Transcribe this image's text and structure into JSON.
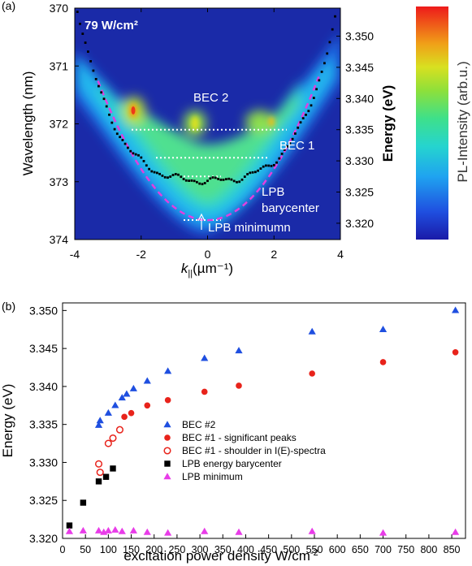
{
  "panel_labels": {
    "a": "(a)",
    "b": "(b)"
  },
  "chart_data": [
    {
      "type": "heatmap",
      "title": "79 W/cm²",
      "xlabel": "k",
      "xlabel_sub": "||",
      "xlabel_unit": "(µm⁻¹)",
      "ylabel_left": "Wavelength (nm)",
      "ylabel_right": "Energy (eV)",
      "colorbar_label": "PL-Intensity (arb.u.)",
      "xlim": [
        -4,
        4
      ],
      "x_ticks": [
        "-4",
        "-2",
        "0",
        "2",
        "4"
      ],
      "wavelength_lim": [
        370,
        374
      ],
      "wavelength_ticks": [
        "370",
        "371",
        "372",
        "373",
        "374"
      ],
      "energy_ticks": [
        "3.350",
        "3.345",
        "3.340",
        "3.335",
        "3.330",
        "3.325",
        "3.320"
      ],
      "annotations": {
        "bec2": "BEC 2",
        "bec1": "BEC 1",
        "lpb_bary_1": "LPB",
        "lpb_bary_2": "barycenter",
        "lpb_min": "LPB minimumn"
      },
      "levels_energy_eV": {
        "BEC2": 3.335,
        "BEC1": 3.3305,
        "LPB_barycenter": 3.3275,
        "LPB_minimum": 3.3205
      }
    },
    {
      "type": "scatter",
      "xlabel": "excitation power density W/cm",
      "xlabel_sup": "-2",
      "ylabel": "Energy (eV)",
      "xlim": [
        0,
        880
      ],
      "ylim": [
        3.32,
        3.351
      ],
      "x_ticks": [
        "0",
        "50",
        "100",
        "150",
        "200",
        "250",
        "300",
        "350",
        "400",
        "450",
        "500",
        "550",
        "600",
        "650",
        "700",
        "750",
        "800",
        "850"
      ],
      "y_ticks": [
        "3.320",
        "3.325",
        "3.330",
        "3.335",
        "3.340",
        "3.345",
        "3.350"
      ],
      "legend_position": "center-right",
      "series": [
        {
          "name": "BEC #2",
          "marker": "triangle",
          "color": "#1f4fe0",
          "filled": true,
          "x": [
            79,
            82,
            100,
            115,
            130,
            140,
            155,
            185,
            230,
            310,
            385,
            545,
            700,
            858
          ],
          "y": [
            3.3349,
            3.3355,
            3.3365,
            3.3375,
            3.3385,
            3.339,
            3.3397,
            3.3407,
            3.342,
            3.3437,
            3.3447,
            3.3472,
            3.3475,
            3.35
          ]
        },
        {
          "name": "BEC #1 - significant peaks",
          "marker": "circle",
          "color": "#e8231b",
          "filled": true,
          "x": [
            135,
            150,
            185,
            230,
            310,
            385,
            545,
            700,
            858
          ],
          "y": [
            3.336,
            3.3365,
            3.3375,
            3.3382,
            3.3393,
            3.3401,
            3.3417,
            3.3432,
            3.3445
          ]
        },
        {
          "name": "BEC #1 - shoulder in I(E)-spectra",
          "marker": "circle",
          "color": "#e8231b",
          "filled": false,
          "x": [
            79,
            82,
            100,
            110,
            125
          ],
          "y": [
            3.3298,
            3.3287,
            3.3325,
            3.3332,
            3.3343
          ]
        },
        {
          "name": "LPB energy barycenter",
          "marker": "square",
          "color": "#000000",
          "filled": true,
          "x": [
            15,
            45,
            79,
            95,
            110
          ],
          "y": [
            3.3217,
            3.3247,
            3.3275,
            3.3281,
            3.3292
          ]
        },
        {
          "name": "LPB minimum",
          "marker": "triangle",
          "color": "#e83ce8",
          "filled": true,
          "x": [
            15,
            45,
            79,
            90,
            100,
            115,
            130,
            155,
            185,
            230,
            310,
            385,
            545,
            700,
            858
          ],
          "y": [
            3.3209,
            3.321,
            3.321,
            3.3208,
            3.321,
            3.3211,
            3.3209,
            3.321,
            3.3208,
            3.3207,
            3.3209,
            3.3208,
            3.3209,
            3.3207,
            3.3208
          ]
        }
      ]
    }
  ]
}
